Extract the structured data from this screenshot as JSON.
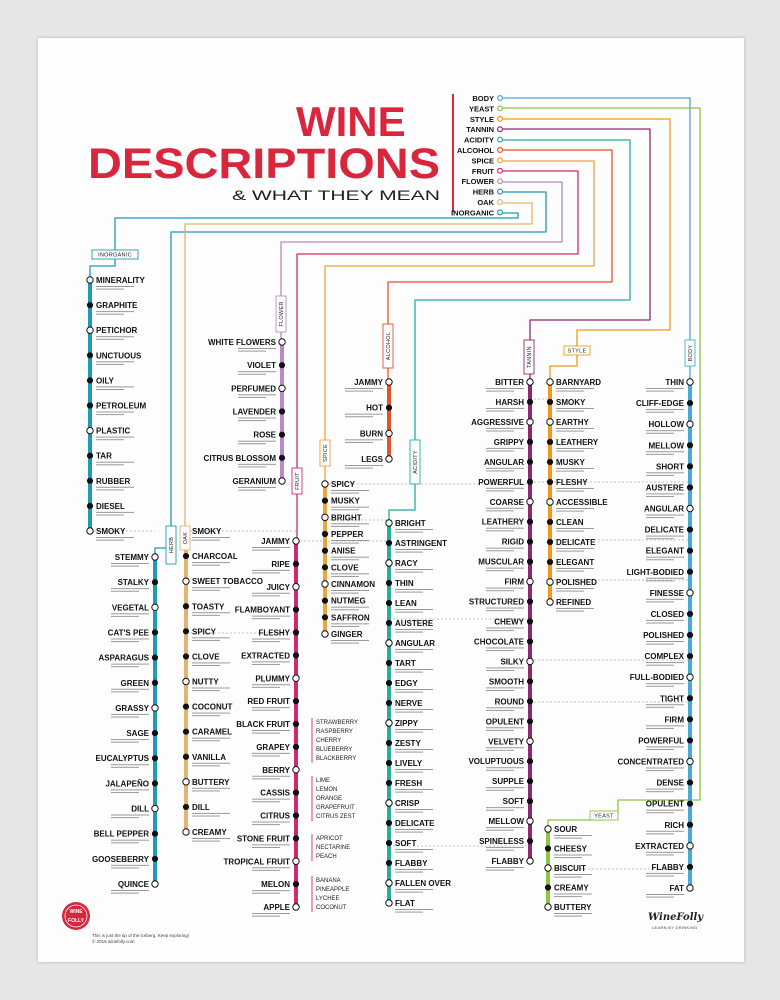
{
  "title": {
    "line1": "WINE",
    "line2": "DESCRIPTIONS",
    "line3": "& WHAT THEY MEAN"
  },
  "colors": {
    "inorganic": "#1f9bb3",
    "herb": "#1f9bb3",
    "oak": "#e2b46f",
    "flower": "#b889c6",
    "fruit": "#d4286c",
    "spice": "#eda43a",
    "alcohol": "#e4532a",
    "acidity": "#27ad9f",
    "tannin": "#8b2a6e",
    "style": "#f09a1d",
    "body": "#4aa9d8",
    "yeast": "#8cc541",
    "title_red": "#d8263d"
  },
  "legend": [
    "BODY",
    "YEAST",
    "STYLE",
    "TANNIN",
    "ACIDITY",
    "ALCOHOL",
    "SPICE",
    "FRUIT",
    "FLOWER",
    "HERB",
    "OAK",
    "INORGANIC"
  ],
  "boxes": {
    "inorganic": "INORGANIC",
    "herb": "HERB",
    "oak": "OAK",
    "flower": "FLOWER",
    "fruit": "FRUIT",
    "spice": "SPICE",
    "alcohol": "ALCOHOL",
    "acidity": "ACIDITY",
    "tannin": "TANNIN",
    "style": "STYLE",
    "body": "BODY",
    "yeast": "YEAST"
  },
  "lines": {
    "inorganic": [
      "MINERALITY",
      "GRAPHITE",
      "PETICHOR",
      "UNCTUOUS",
      "OILY",
      "PETROLEUM",
      "PLASTIC",
      "TAR",
      "RUBBER",
      "DIESEL",
      "SMOKY"
    ],
    "herb": [
      "STEMMY",
      "STALKY",
      "VEGETAL",
      "CAT'S PEE",
      "ASPARAGUS",
      "GREEN",
      "GRASSY",
      "SAGE",
      "EUCALYPTUS",
      "JALAPEÑO",
      "DILL",
      "BELL PEPPER",
      "GOOSEBERRY",
      "QUINCE"
    ],
    "oak": [
      "SMOKY",
      "CHARCOAL",
      "SWEET TOBACCO",
      "TOASTY",
      "SPICY",
      "CLOVE",
      "NUTTY",
      "COCONUT",
      "CARAMEL",
      "VANILLA",
      "BUTTERY",
      "DILL",
      "CREAMY"
    ],
    "flower": [
      "WHITE FLOWERS",
      "VIOLET",
      "PERFUMED",
      "LAVENDER",
      "ROSE",
      "CITRUS BLOSSOM",
      "GERANIUM"
    ],
    "fruit": [
      "JAMMY",
      "RIPE",
      "JUICY",
      "FLAMBOYANT",
      "FLESHY",
      "EXTRACTED",
      "PLUMMY",
      "RED FRUIT",
      "BLACK FRUIT",
      "GRAPEY",
      "BERRY",
      "CASSIS",
      "CITRUS",
      "STONE FRUIT",
      "TROPICAL FRUIT",
      "MELON",
      "APPLE"
    ],
    "spice": [
      "SPICY",
      "MUSKY",
      "BRIGHT",
      "PEPPER",
      "ANISE",
      "CLOVE",
      "CINNAMON",
      "NUTMEG",
      "SAFFRON",
      "GINGER"
    ],
    "alcohol": [
      "JAMMY",
      "HOT",
      "BURN",
      "LEGS"
    ],
    "acidity": [
      "BRIGHT",
      "ASTRINGENT",
      "RACY",
      "THIN",
      "LEAN",
      "AUSTERE",
      "ANGULAR",
      "TART",
      "EDGY",
      "NERVE",
      "ZIPPY",
      "ZESTY",
      "LIVELY",
      "FRESH",
      "CRISP",
      "DELICATE",
      "SOFT",
      "FLABBY",
      "FALLEN OVER",
      "FLAT"
    ],
    "tannin": [
      "BITTER",
      "HARSH",
      "AGGRESSIVE",
      "GRIPPY",
      "ANGULAR",
      "POWERFUL",
      "COARSE",
      "LEATHERY",
      "RIGID",
      "MUSCULAR",
      "FIRM",
      "STRUCTURED",
      "CHEWY",
      "CHOCOLATE",
      "SILKY",
      "SMOOTH",
      "ROUND",
      "OPULENT",
      "VELVETY",
      "VOLUPTUOUS",
      "SUPPLE",
      "SOFT",
      "MELLOW",
      "SPINELESS",
      "FLABBY"
    ],
    "style": [
      "BARNYARD",
      "SMOKY",
      "EARTHY",
      "LEATHERY",
      "MUSKY",
      "FLESHY",
      "ACCESSIBLE",
      "CLEAN",
      "DELICATE",
      "ELEGANT",
      "POLISHED",
      "REFINED"
    ],
    "body": [
      "THIN",
      "CLIFF-EDGE",
      "HOLLOW",
      "MELLOW",
      "SHORT",
      "AUSTERE",
      "ANGULAR",
      "DELICATE",
      "ELEGANT",
      "LIGHT-BODIED",
      "FINESSE",
      "CLOSED",
      "POLISHED",
      "COMPLEX",
      "FULL-BODIED",
      "TIGHT",
      "FIRM",
      "POWERFUL",
      "CONCENTRATED",
      "DENSE",
      "OPULENT",
      "RICH",
      "EXTRACTED",
      "FLABBY",
      "FAT"
    ],
    "yeast": [
      "SOUR",
      "CHEESY",
      "BISCUIT",
      "CREAMY",
      "BUTTERY"
    ]
  },
  "fruit_lists": {
    "red": [
      "STRAWBERRY",
      "RASPBERRY",
      "CHERRY",
      "BLUEBERRY",
      "BLACKBERRY"
    ],
    "citrus": [
      "LIME",
      "LEMON",
      "ORANGE",
      "GRAPEFRUIT",
      "CITRUS ZEST"
    ],
    "stone": [
      "APRICOT",
      "NECTARINE",
      "PEACH"
    ],
    "tropical": [
      "BANANA",
      "PINEAPPLE",
      "LYCHEE",
      "COCONUT"
    ]
  },
  "footer": {
    "note_line1": "This is just the tip of the iceberg. Keep exploring!",
    "note_line2": "© 2015 winefolly.com",
    "badge_top": "WINE",
    "badge_bottom": "FOLLY",
    "brand": "WineFolly",
    "brand_sub": "LEARN BY DRINKING"
  }
}
